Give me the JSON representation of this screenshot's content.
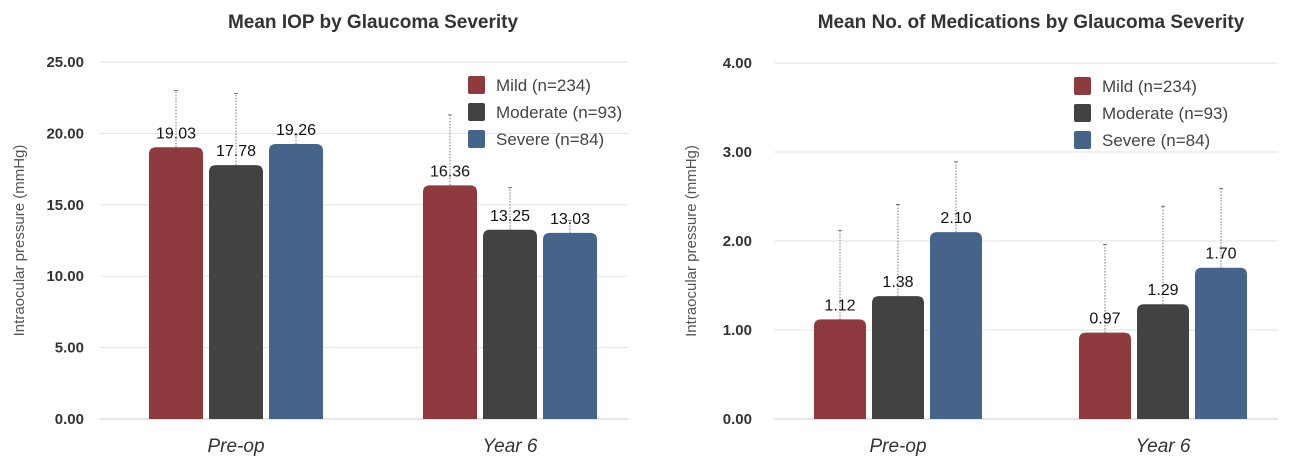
{
  "chart_data": [
    {
      "type": "bar",
      "title": "Mean IOP by Glaucoma Severity",
      "ylabel": "Intraocular pressure (mmHg)",
      "xlabel": "",
      "categories": [
        "Pre-op",
        "Year 6"
      ],
      "ylim": [
        0,
        25
      ],
      "yticks": [
        "0.00",
        "5.00",
        "10.00",
        "15.00",
        "20.00",
        "25.00"
      ],
      "grid": true,
      "legend_position": "top-right",
      "series": [
        {
          "name": "Mild (n=234)",
          "color": "#8e3a3e",
          "values": [
            19.03,
            16.36
          ],
          "labels": [
            "19.03",
            "16.36"
          ],
          "err_upper": [
            23.0,
            21.3
          ]
        },
        {
          "name": "Moderate (n=93)",
          "color": "#424242",
          "values": [
            17.78,
            13.25
          ],
          "labels": [
            "17.78",
            "13.25"
          ],
          "err_upper": [
            22.8,
            16.2
          ]
        },
        {
          "name": "Severe (n=84)",
          "color": "#44648a",
          "values": [
            19.26,
            13.03
          ],
          "labels": [
            "19.26",
            "13.03"
          ],
          "err_upper": [
            19.9,
            13.9
          ]
        }
      ]
    },
    {
      "type": "bar",
      "title": "Mean No. of Medications by Glaucoma Severity",
      "ylabel": "Intraocular pressure (mmHg)",
      "xlabel": "",
      "categories": [
        "Pre-op",
        "Year 6"
      ],
      "ylim": [
        0,
        4
      ],
      "yticks": [
        "0.00",
        "1.00",
        "2.00",
        "3.00",
        "4.00"
      ],
      "grid": true,
      "legend_position": "top-right",
      "series": [
        {
          "name": "Mild (n=234)",
          "color": "#8e3a3e",
          "values": [
            1.12,
            0.97
          ],
          "labels": [
            "1.12",
            "0.97"
          ],
          "err_upper": [
            2.12,
            1.96
          ]
        },
        {
          "name": "Moderate (n=93)",
          "color": "#424242",
          "values": [
            1.38,
            1.29
          ],
          "labels": [
            "1.38",
            "1.29"
          ],
          "err_upper": [
            2.41,
            2.39
          ]
        },
        {
          "name": "Severe (n=84)",
          "color": "#44648a",
          "values": [
            2.1,
            1.7
          ],
          "labels": [
            "2.10",
            "1.70"
          ],
          "err_upper": [
            2.89,
            2.59
          ]
        }
      ]
    }
  ]
}
